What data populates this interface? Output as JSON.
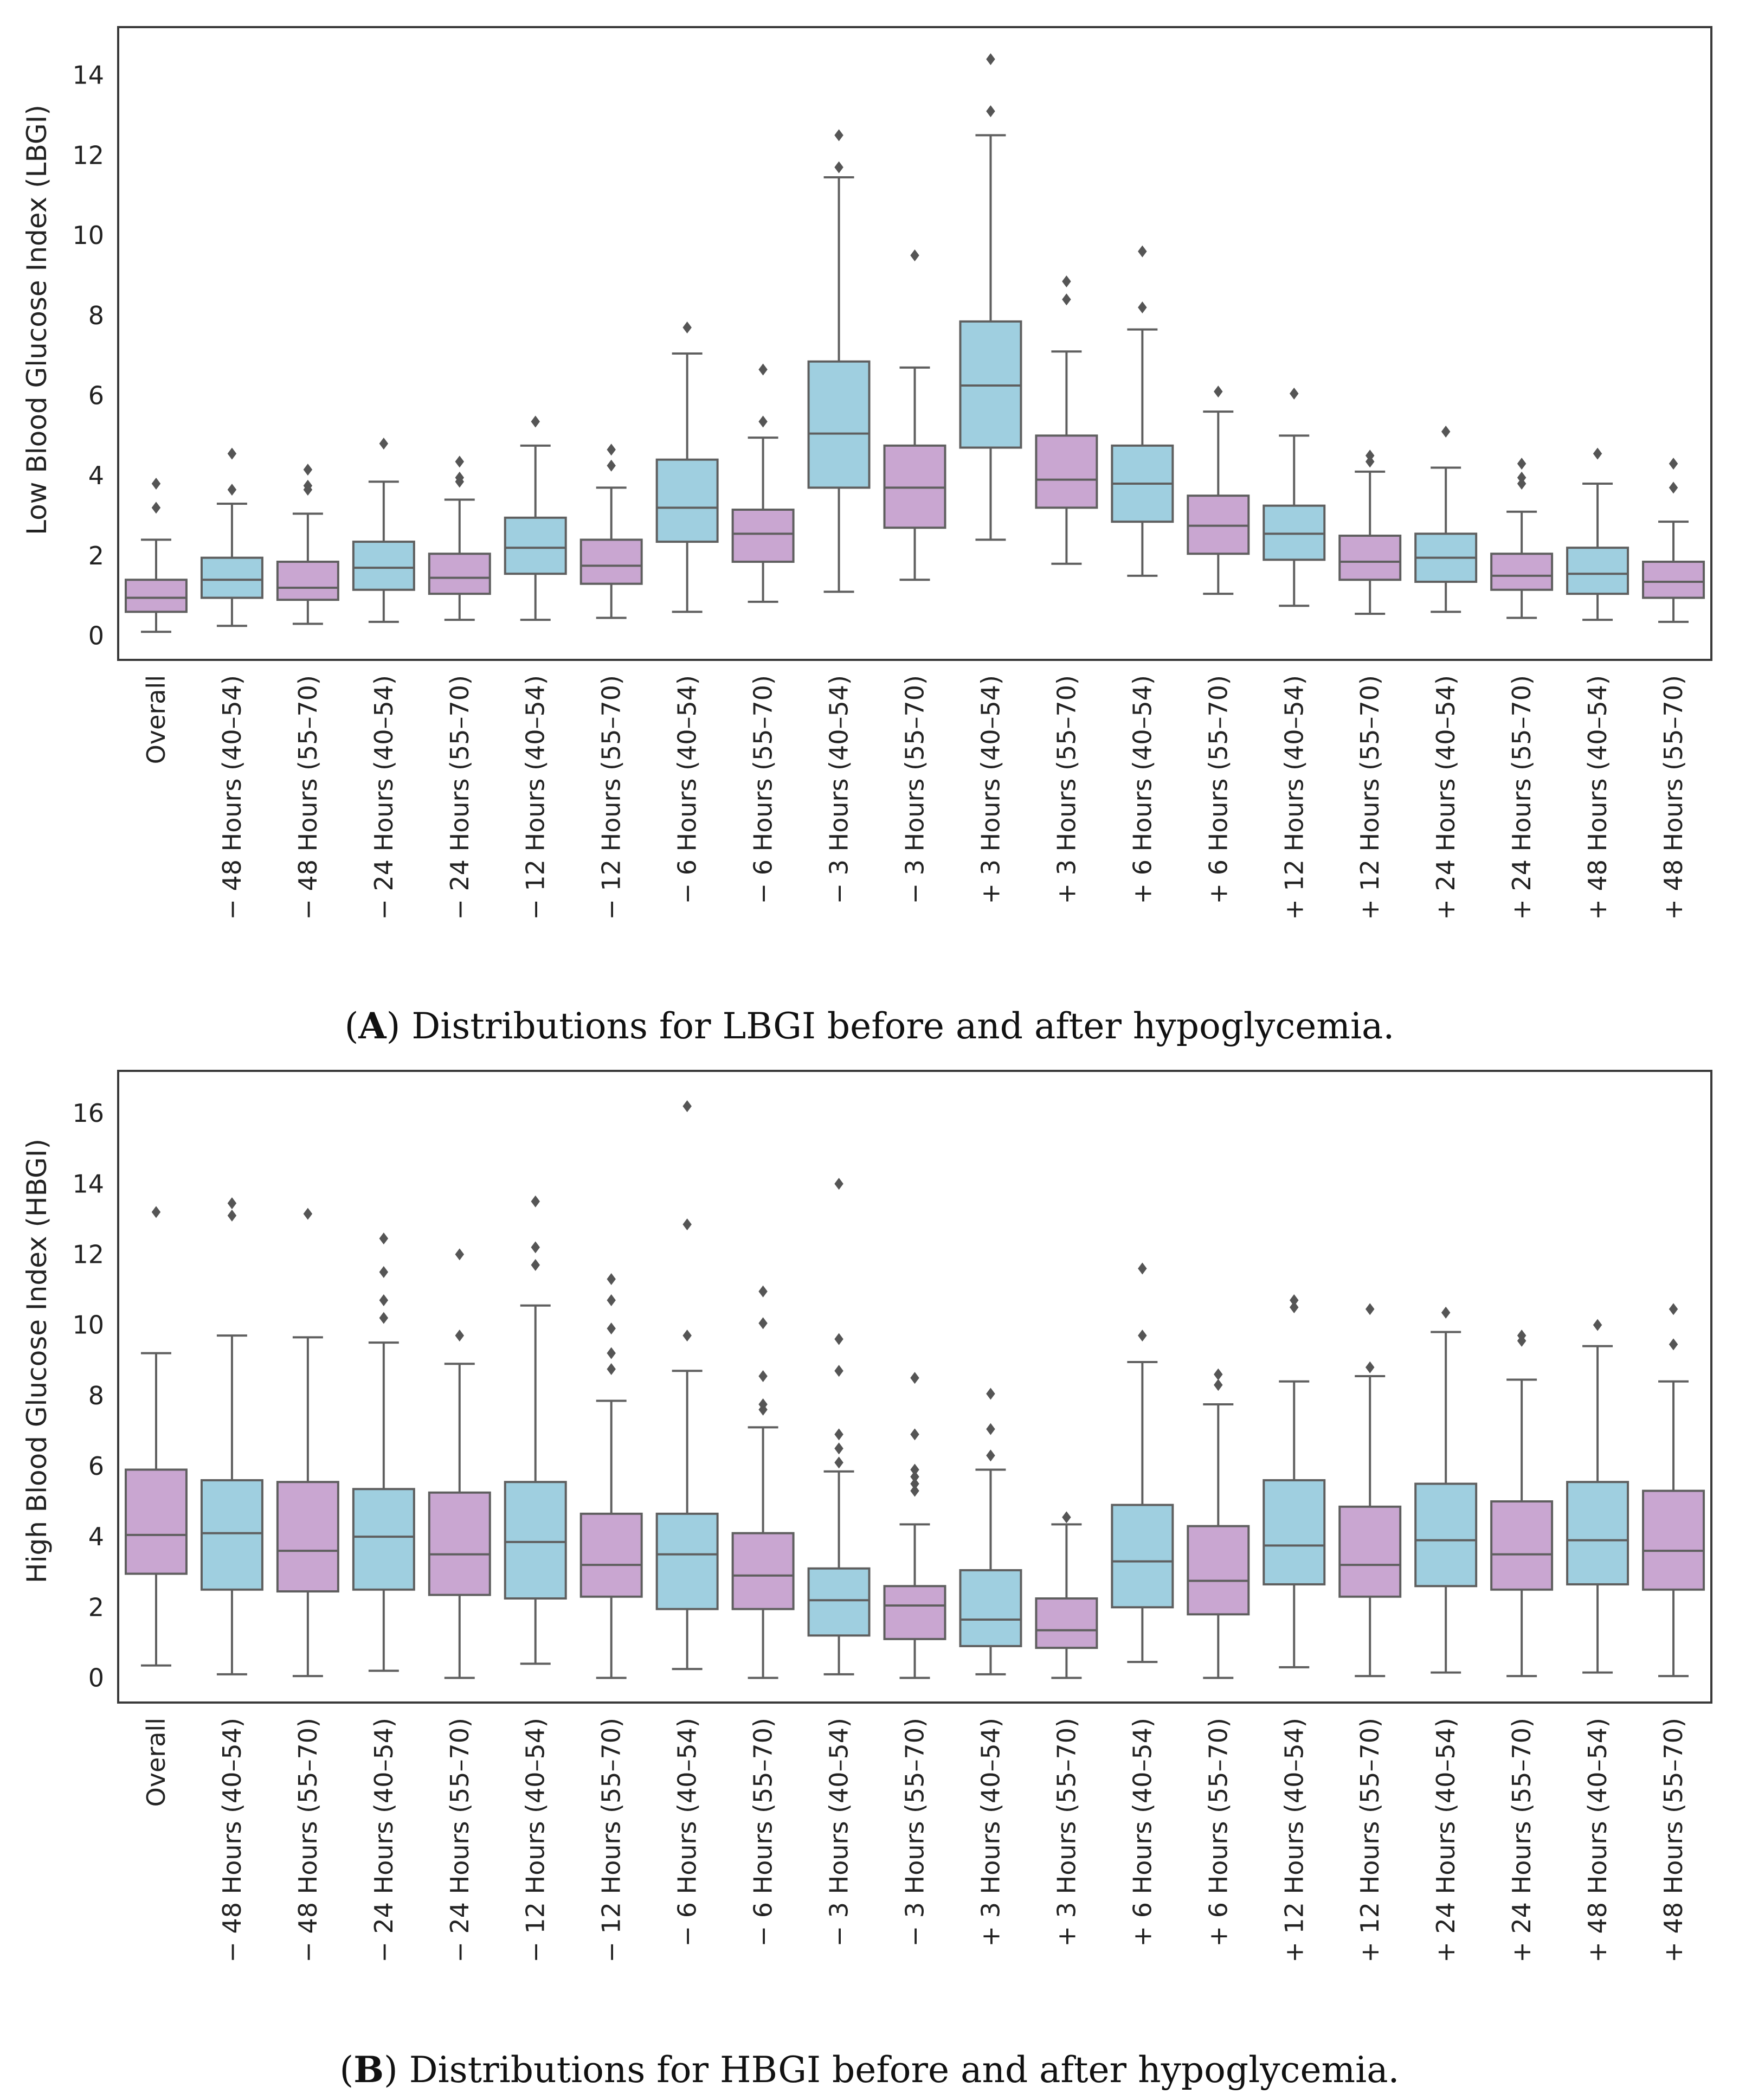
{
  "chart_data": [
    {
      "type": "box",
      "ylabel": "Low Blood Glucose Index (LBGI)",
      "ylim": [
        -0.6,
        15.2
      ],
      "yticks": [
        0,
        2,
        4,
        6,
        8,
        10,
        12,
        14
      ],
      "caption_letter": "A",
      "caption_text": "Distributions for LBGI before and after hypoglycemia.",
      "categories": [
        "Overall",
        "− 48 Hours (40–54)",
        "− 48 Hours (55–70)",
        "− 24 Hours (40–54)",
        "− 24 Hours (55–70)",
        "− 12 Hours (40–54)",
        "− 12 Hours (55–70)",
        "− 6 Hours (40–54)",
        "− 6 Hours (55–70)",
        "− 3 Hours (40–54)",
        "− 3 Hours (55–70)",
        "+ 3 Hours (40–54)",
        "+ 3 Hours (55–70)",
        "+ 6 Hours (40–54)",
        "+ 6 Hours (55–70)",
        "+ 12 Hours (40–54)",
        "+ 12 Hours (55–70)",
        "+ 24 Hours (40–54)",
        "+ 24 Hours (55–70)",
        "+ 48 Hours (40–54)",
        "+ 48 Hours (55–70)"
      ],
      "colors": [
        "#c9a6d1",
        "#9fcfe0",
        "#c9a6d1",
        "#9fcfe0",
        "#c9a6d1",
        "#9fcfe0",
        "#c9a6d1",
        "#9fcfe0",
        "#c9a6d1",
        "#9fcfe0",
        "#c9a6d1",
        "#9fcfe0",
        "#c9a6d1",
        "#9fcfe0",
        "#c9a6d1",
        "#9fcfe0",
        "#c9a6d1",
        "#9fcfe0",
        "#c9a6d1",
        "#9fcfe0",
        "#c9a6d1"
      ],
      "boxes": [
        {
          "wlo": 0.1,
          "q1": 0.6,
          "med": 0.95,
          "q3": 1.4,
          "whi": 2.4,
          "out": [
            3.2,
            3.8
          ]
        },
        {
          "wlo": 0.25,
          "q1": 0.95,
          "med": 1.4,
          "q3": 1.95,
          "whi": 3.3,
          "out": [
            3.65,
            4.55
          ]
        },
        {
          "wlo": 0.3,
          "q1": 0.9,
          "med": 1.2,
          "q3": 1.85,
          "whi": 3.05,
          "out": [
            3.65,
            3.75,
            4.15
          ]
        },
        {
          "wlo": 0.35,
          "q1": 1.15,
          "med": 1.7,
          "q3": 2.35,
          "whi": 3.85,
          "out": [
            4.8
          ]
        },
        {
          "wlo": 0.4,
          "q1": 1.05,
          "med": 1.45,
          "q3": 2.05,
          "whi": 3.4,
          "out": [
            3.85,
            3.95,
            4.35
          ]
        },
        {
          "wlo": 0.4,
          "q1": 1.55,
          "med": 2.2,
          "q3": 2.95,
          "whi": 4.75,
          "out": [
            5.35
          ]
        },
        {
          "wlo": 0.45,
          "q1": 1.3,
          "med": 1.75,
          "q3": 2.4,
          "whi": 3.7,
          "out": [
            4.25,
            4.65
          ]
        },
        {
          "wlo": 0.6,
          "q1": 2.35,
          "med": 3.2,
          "q3": 4.4,
          "whi": 7.05,
          "out": [
            7.7
          ]
        },
        {
          "wlo": 0.85,
          "q1": 1.85,
          "med": 2.55,
          "q3": 3.15,
          "whi": 4.95,
          "out": [
            5.35,
            6.65
          ]
        },
        {
          "wlo": 1.1,
          "q1": 3.7,
          "med": 5.05,
          "q3": 6.85,
          "whi": 11.45,
          "out": [
            11.7,
            12.5
          ]
        },
        {
          "wlo": 1.4,
          "q1": 2.7,
          "med": 3.7,
          "q3": 4.75,
          "whi": 6.7,
          "out": [
            9.5
          ]
        },
        {
          "wlo": 2.4,
          "q1": 4.7,
          "med": 6.25,
          "q3": 7.85,
          "whi": 12.5,
          "out": [
            13.1,
            14.4
          ]
        },
        {
          "wlo": 1.8,
          "q1": 3.2,
          "med": 3.9,
          "q3": 5.0,
          "whi": 7.1,
          "out": [
            8.4,
            8.85
          ]
        },
        {
          "wlo": 1.5,
          "q1": 2.85,
          "med": 3.8,
          "q3": 4.75,
          "whi": 7.65,
          "out": [
            8.2,
            9.6
          ]
        },
        {
          "wlo": 1.05,
          "q1": 2.05,
          "med": 2.75,
          "q3": 3.5,
          "whi": 5.6,
          "out": [
            6.1
          ]
        },
        {
          "wlo": 0.75,
          "q1": 1.9,
          "med": 2.55,
          "q3": 3.25,
          "whi": 5.0,
          "out": [
            6.05
          ]
        },
        {
          "wlo": 0.55,
          "q1": 1.4,
          "med": 1.85,
          "q3": 2.5,
          "whi": 4.1,
          "out": [
            4.35,
            4.5
          ]
        },
        {
          "wlo": 0.6,
          "q1": 1.35,
          "med": 1.95,
          "q3": 2.55,
          "whi": 4.2,
          "out": [
            5.1
          ]
        },
        {
          "wlo": 0.45,
          "q1": 1.15,
          "med": 1.5,
          "q3": 2.05,
          "whi": 3.1,
          "out": [
            3.8,
            3.95,
            4.3
          ]
        },
        {
          "wlo": 0.4,
          "q1": 1.05,
          "med": 1.55,
          "q3": 2.2,
          "whi": 3.8,
          "out": [
            4.55
          ]
        },
        {
          "wlo": 0.35,
          "q1": 0.95,
          "med": 1.35,
          "q3": 1.85,
          "whi": 2.85,
          "out": [
            3.7,
            4.3
          ]
        }
      ]
    },
    {
      "type": "box",
      "ylabel": "High Blood Glucose Index (HBGI)",
      "ylim": [
        -0.7,
        17.2
      ],
      "yticks": [
        0,
        2,
        4,
        6,
        8,
        10,
        12,
        14,
        16
      ],
      "caption_letter": "B",
      "caption_text": "Distributions for HBGI before and after hypoglycemia.",
      "categories": [
        "Overall",
        "− 48 Hours (40–54)",
        "− 48 Hours (55–70)",
        "− 24 Hours (40–54)",
        "− 24 Hours (55–70)",
        "− 12 Hours (40–54)",
        "− 12 Hours (55–70)",
        "− 6 Hours (40–54)",
        "− 6 Hours (55–70)",
        "− 3 Hours (40–54)",
        "− 3 Hours (55–70)",
        "+ 3 Hours (40–54)",
        "+ 3 Hours (55–70)",
        "+ 6 Hours (40–54)",
        "+ 6 Hours (55–70)",
        "+ 12 Hours (40–54)",
        "+ 12 Hours (55–70)",
        "+ 24 Hours (40–54)",
        "+ 24 Hours (55–70)",
        "+ 48 Hours (40–54)",
        "+ 48 Hours (55–70)"
      ],
      "colors": [
        "#c9a6d1",
        "#9fcfe0",
        "#c9a6d1",
        "#9fcfe0",
        "#c9a6d1",
        "#9fcfe0",
        "#c9a6d1",
        "#9fcfe0",
        "#c9a6d1",
        "#9fcfe0",
        "#c9a6d1",
        "#9fcfe0",
        "#c9a6d1",
        "#9fcfe0",
        "#c9a6d1",
        "#9fcfe0",
        "#c9a6d1",
        "#9fcfe0",
        "#c9a6d1",
        "#9fcfe0",
        "#c9a6d1"
      ],
      "boxes": [
        {
          "wlo": 0.35,
          "q1": 2.95,
          "med": 4.05,
          "q3": 5.9,
          "whi": 9.2,
          "out": [
            13.2
          ]
        },
        {
          "wlo": 0.1,
          "q1": 2.5,
          "med": 4.1,
          "q3": 5.6,
          "whi": 9.7,
          "out": [
            13.1,
            13.45
          ]
        },
        {
          "wlo": 0.05,
          "q1": 2.45,
          "med": 3.6,
          "q3": 5.55,
          "whi": 9.65,
          "out": [
            13.15
          ]
        },
        {
          "wlo": 0.2,
          "q1": 2.5,
          "med": 4.0,
          "q3": 5.35,
          "whi": 9.5,
          "out": [
            10.2,
            10.7,
            11.5,
            12.45
          ]
        },
        {
          "wlo": 0.0,
          "q1": 2.35,
          "med": 3.5,
          "q3": 5.25,
          "whi": 8.9,
          "out": [
            9.7,
            12.0
          ]
        },
        {
          "wlo": 0.4,
          "q1": 2.25,
          "med": 3.85,
          "q3": 5.55,
          "whi": 10.55,
          "out": [
            11.7,
            12.2,
            13.5
          ]
        },
        {
          "wlo": 0.0,
          "q1": 2.3,
          "med": 3.2,
          "q3": 4.65,
          "whi": 7.85,
          "out": [
            8.75,
            9.2,
            9.9,
            10.7,
            11.3
          ]
        },
        {
          "wlo": 0.25,
          "q1": 1.95,
          "med": 3.5,
          "q3": 4.65,
          "whi": 8.7,
          "out": [
            9.7,
            12.85,
            16.2
          ]
        },
        {
          "wlo": 0.0,
          "q1": 1.95,
          "med": 2.9,
          "q3": 4.1,
          "whi": 7.1,
          "out": [
            7.6,
            7.75,
            8.55,
            10.05,
            10.95
          ]
        },
        {
          "wlo": 0.1,
          "q1": 1.2,
          "med": 2.2,
          "q3": 3.1,
          "whi": 5.85,
          "out": [
            6.1,
            6.5,
            6.9,
            8.7,
            9.6,
            14.0
          ]
        },
        {
          "wlo": 0.0,
          "q1": 1.1,
          "med": 2.05,
          "q3": 2.6,
          "whi": 4.35,
          "out": [
            5.3,
            5.5,
            5.7,
            5.9,
            6.9,
            8.5
          ]
        },
        {
          "wlo": 0.1,
          "q1": 0.9,
          "med": 1.65,
          "q3": 3.05,
          "whi": 5.9,
          "out": [
            6.3,
            7.05,
            8.05
          ]
        },
        {
          "wlo": 0.0,
          "q1": 0.85,
          "med": 1.35,
          "q3": 2.25,
          "whi": 4.35,
          "out": [
            4.55
          ]
        },
        {
          "wlo": 0.45,
          "q1": 2.0,
          "med": 3.3,
          "q3": 4.9,
          "whi": 8.95,
          "out": [
            9.7,
            11.6
          ]
        },
        {
          "wlo": 0.0,
          "q1": 1.8,
          "med": 2.75,
          "q3": 4.3,
          "whi": 7.75,
          "out": [
            8.3,
            8.6
          ]
        },
        {
          "wlo": 0.3,
          "q1": 2.65,
          "med": 3.75,
          "q3": 5.6,
          "whi": 8.4,
          "out": [
            10.5,
            10.7
          ]
        },
        {
          "wlo": 0.05,
          "q1": 2.3,
          "med": 3.2,
          "q3": 4.85,
          "whi": 8.55,
          "out": [
            8.8,
            10.45
          ]
        },
        {
          "wlo": 0.15,
          "q1": 2.6,
          "med": 3.9,
          "q3": 5.5,
          "whi": 9.8,
          "out": [
            10.35
          ]
        },
        {
          "wlo": 0.05,
          "q1": 2.5,
          "med": 3.5,
          "q3": 5.0,
          "whi": 8.45,
          "out": [
            9.55,
            9.7
          ]
        },
        {
          "wlo": 0.15,
          "q1": 2.65,
          "med": 3.9,
          "q3": 5.55,
          "whi": 9.4,
          "out": [
            10.0
          ]
        },
        {
          "wlo": 0.05,
          "q1": 2.5,
          "med": 3.6,
          "q3": 5.3,
          "whi": 8.4,
          "out": [
            9.45,
            10.45
          ]
        }
      ]
    }
  ]
}
